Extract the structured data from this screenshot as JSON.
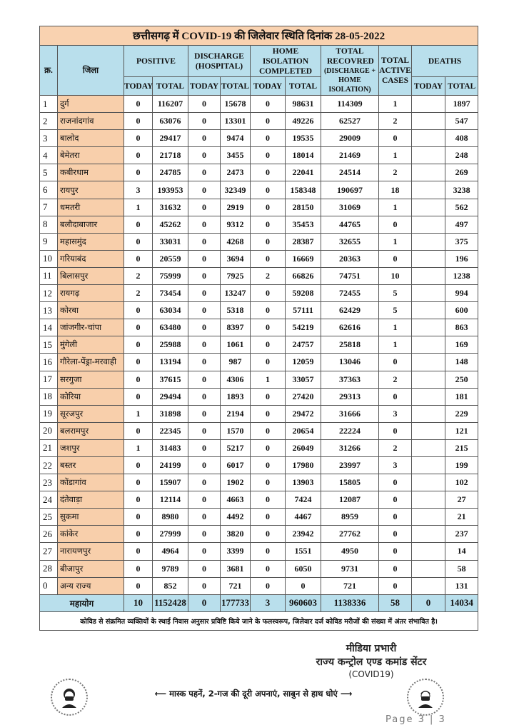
{
  "title": "छत्तीसगढ़ में COVID-19 की जिलेवार स्थिति दिनांक 28-05-2022",
  "headers": {
    "sn": "क्र.",
    "district": "जिला",
    "positive": "POSITIVE",
    "discharge": "DISCHARGE (HOSPITAL)",
    "home_isolation": "HOME ISOLATION COMPLETED",
    "total_recovered": "TOTAL RECOVRED",
    "total_recovered_sub": "(DISCHARGE + HOME ISOLATION)",
    "total_active": "TOTAL ACTIVE CASES",
    "deaths": "DEATHS",
    "today": "TODAY",
    "total": "TOTAL"
  },
  "rows": [
    [
      "1",
      "दुर्ग",
      "0",
      "116207",
      "0",
      "15678",
      "0",
      "98631",
      "114309",
      "1",
      "",
      "1897"
    ],
    [
      "2",
      "राजनांदगांव",
      "0",
      "63076",
      "0",
      "13301",
      "0",
      "49226",
      "62527",
      "2",
      "",
      "547"
    ],
    [
      "3",
      "बालोद",
      "0",
      "29417",
      "0",
      "9474",
      "0",
      "19535",
      "29009",
      "0",
      "",
      "408"
    ],
    [
      "4",
      "बेमेतरा",
      "0",
      "21718",
      "0",
      "3455",
      "0",
      "18014",
      "21469",
      "1",
      "",
      "248"
    ],
    [
      "5",
      "कबीरधाम",
      "0",
      "24785",
      "0",
      "2473",
      "0",
      "22041",
      "24514",
      "2",
      "",
      "269"
    ],
    [
      "6",
      "रायपुर",
      "3",
      "193953",
      "0",
      "32349",
      "0",
      "158348",
      "190697",
      "18",
      "",
      "3238"
    ],
    [
      "7",
      "धमतरी",
      "1",
      "31632",
      "0",
      "2919",
      "0",
      "28150",
      "31069",
      "1",
      "",
      "562"
    ],
    [
      "8",
      "बलौदाबाजार",
      "0",
      "45262",
      "0",
      "9312",
      "0",
      "35453",
      "44765",
      "0",
      "",
      "497"
    ],
    [
      "9",
      "महासमुंद",
      "0",
      "33031",
      "0",
      "4268",
      "0",
      "28387",
      "32655",
      "1",
      "",
      "375"
    ],
    [
      "10",
      "गरियाबंद",
      "0",
      "20559",
      "0",
      "3694",
      "0",
      "16669",
      "20363",
      "0",
      "",
      "196"
    ],
    [
      "11",
      "बिलासपुर",
      "2",
      "75999",
      "0",
      "7925",
      "2",
      "66826",
      "74751",
      "10",
      "",
      "1238"
    ],
    [
      "12",
      "रायगढ़",
      "2",
      "73454",
      "0",
      "13247",
      "0",
      "59208",
      "72455",
      "5",
      "",
      "994"
    ],
    [
      "13",
      "कोरबा",
      "0",
      "63034",
      "0",
      "5318",
      "0",
      "57111",
      "62429",
      "5",
      "",
      "600"
    ],
    [
      "14",
      "जांजगीर-चांपा",
      "0",
      "63480",
      "0",
      "8397",
      "0",
      "54219",
      "62616",
      "1",
      "",
      "863"
    ],
    [
      "15",
      "मुंगेली",
      "0",
      "25988",
      "0",
      "1061",
      "0",
      "24757",
      "25818",
      "1",
      "",
      "169"
    ],
    [
      "16",
      "गौरेला-पेंड्रा-मरवाही",
      "0",
      "13194",
      "0",
      "987",
      "0",
      "12059",
      "13046",
      "0",
      "",
      "148"
    ],
    [
      "17",
      "सरगुजा",
      "0",
      "37615",
      "0",
      "4306",
      "1",
      "33057",
      "37363",
      "2",
      "",
      "250"
    ],
    [
      "18",
      "कोरिया",
      "0",
      "29494",
      "0",
      "1893",
      "0",
      "27420",
      "29313",
      "0",
      "",
      "181"
    ],
    [
      "19",
      "सूरजपुर",
      "1",
      "31898",
      "0",
      "2194",
      "0",
      "29472",
      "31666",
      "3",
      "",
      "229"
    ],
    [
      "20",
      "बलरामपुर",
      "0",
      "22345",
      "0",
      "1570",
      "0",
      "20654",
      "22224",
      "0",
      "",
      "121"
    ],
    [
      "21",
      "जशपुर",
      "1",
      "31483",
      "0",
      "5217",
      "0",
      "26049",
      "31266",
      "2",
      "",
      "215"
    ],
    [
      "22",
      "बस्तर",
      "0",
      "24199",
      "0",
      "6017",
      "0",
      "17980",
      "23997",
      "3",
      "",
      "199"
    ],
    [
      "23",
      "कोंडागांव",
      "0",
      "15907",
      "0",
      "1902",
      "0",
      "13903",
      "15805",
      "0",
      "",
      "102"
    ],
    [
      "24",
      "दंतेवाड़ा",
      "0",
      "12114",
      "0",
      "4663",
      "0",
      "7424",
      "12087",
      "0",
      "",
      "27"
    ],
    [
      "25",
      "सुकमा",
      "0",
      "8980",
      "0",
      "4492",
      "0",
      "4467",
      "8959",
      "0",
      "",
      "21"
    ],
    [
      "26",
      "कांकेर",
      "0",
      "27999",
      "0",
      "3820",
      "0",
      "23942",
      "27762",
      "0",
      "",
      "237"
    ],
    [
      "27",
      "नारायणपुर",
      "0",
      "4964",
      "0",
      "3399",
      "0",
      "1551",
      "4950",
      "0",
      "",
      "14"
    ],
    [
      "28",
      "बीजापुर",
      "0",
      "9789",
      "0",
      "3681",
      "0",
      "6050",
      "9731",
      "0",
      "",
      "58"
    ],
    [
      "0",
      "अन्य राज्य",
      "0",
      "852",
      "0",
      "721",
      "0",
      "0",
      "721",
      "0",
      "",
      "131"
    ]
  ],
  "total": {
    "label": "महायोग",
    "values": [
      "10",
      "1152428",
      "0",
      "177733",
      "3",
      "960603",
      "1138336",
      "58",
      "0",
      "14034"
    ]
  },
  "note": "कोविड से संक्रमित व्यक्तियों के स्थाई निवास अनुसार प्रविष्टि किये जाने के फलस्वरूप, जिलेवार दर्ज कोविड मरीजों की संख्या में अंतर संभावित है।",
  "footer": {
    "media_line1": "मीडिया प्रभारी",
    "media_line2": "राज्य कन्ट्रोल एण्ड कमांड सेंटर",
    "media_line3": "(COVID19)",
    "slogan": "⟵ मास्क पहनें, 2-गज की दूरी अपनाएं, साबुन से हाथ धोएं ⟶",
    "page": "Page 3 | 3"
  },
  "colors": {
    "title_bg": "#f9d2b0",
    "header_bg": "#b9dfec",
    "district_bg": "#f8cfab"
  },
  "icons": [
    "masked-woman-icon",
    "masked-man-icon"
  ]
}
